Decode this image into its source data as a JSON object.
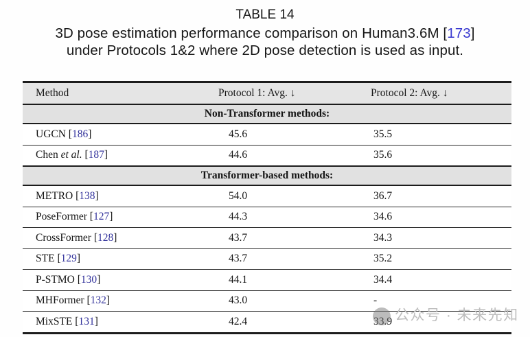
{
  "colors": {
    "caption_citation_blue": "#3a3ad0",
    "table_citation_blue": "#32329b",
    "header_row_bg": "#e5e5e5",
    "section_row_bg": "#e1e1e1",
    "rule_color": "#1c1c1c",
    "watermark_gray": "#bdbdbd"
  },
  "caption": {
    "line1": "TABLE 14",
    "line2_pre": "3D pose estimation performance comparison on Human3.6M [",
    "line2_cite": "173",
    "line2_post": "]",
    "line3": "under Protocols 1&2 where 2D pose detection is used as input."
  },
  "table": {
    "headers": [
      "Method",
      "Protocol 1: Avg. ↓",
      "Protocol 2: Avg. ↓"
    ],
    "bracket_open": "[",
    "bracket_close": "]",
    "sections": [
      {
        "title": "Non-Transformer methods:",
        "rows": [
          {
            "name": "UGCN ",
            "etal": "",
            "cite": "186",
            "p1": "45.6",
            "p2": "35.5"
          },
          {
            "name": "Chen ",
            "etal": "et al. ",
            "cite": "187",
            "p1": "44.6",
            "p2": "35.6"
          }
        ]
      },
      {
        "title": "Transformer-based methods:",
        "rows": [
          {
            "name": "METRO ",
            "etal": "",
            "cite": "138",
            "p1": "54.0",
            "p2": "36.7"
          },
          {
            "name": "PoseFormer ",
            "etal": "",
            "cite": "127",
            "p1": "44.3",
            "p2": "34.6"
          },
          {
            "name": "CrossFormer ",
            "etal": "",
            "cite": "128",
            "p1": "43.7",
            "p2": "34.3"
          },
          {
            "name": "STE ",
            "etal": "",
            "cite": "129",
            "p1": "43.7",
            "p2": "35.2"
          },
          {
            "name": "P-STMO ",
            "etal": "",
            "cite": "130",
            "p1": "44.1",
            "p2": "34.4"
          },
          {
            "name": "MHFormer ",
            "etal": "",
            "cite": "132",
            "p1": "43.0",
            "p2": "-"
          },
          {
            "name": "MixSTE ",
            "etal": "",
            "cite": "131",
            "p1": "42.4",
            "p2": "33.9"
          }
        ]
      }
    ]
  },
  "watermark": {
    "text": "公众号 · 未来先知"
  }
}
